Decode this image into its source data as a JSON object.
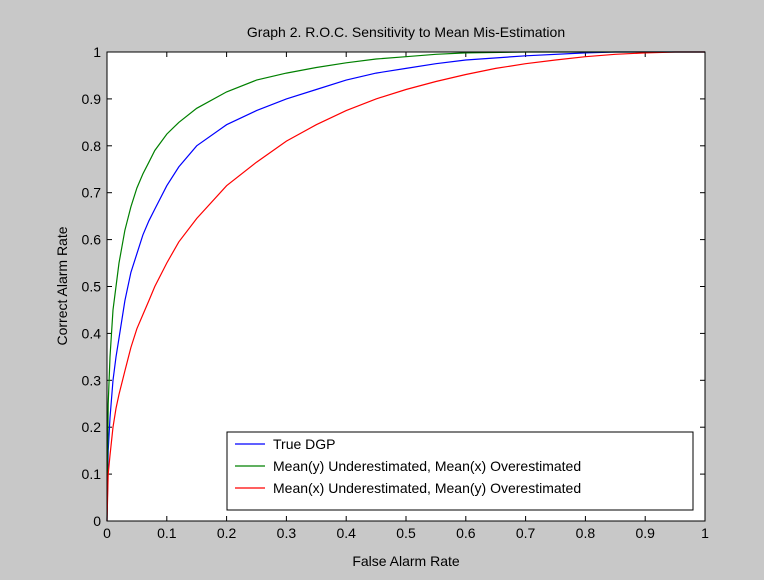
{
  "chart_data": {
    "type": "line",
    "title": "Graph 2. R.O.C. Sensitivity to Mean Mis-Estimation",
    "xlabel": "False Alarm Rate",
    "ylabel": "Correct Alarm Rate",
    "xlim": [
      0,
      1
    ],
    "ylim": [
      0,
      1
    ],
    "xticks": [
      0,
      0.1,
      0.2,
      0.3,
      0.4,
      0.5,
      0.6,
      0.7,
      0.8,
      0.9,
      1
    ],
    "xtick_labels": [
      "0",
      "0.1",
      "0.2",
      "0.3",
      "0.4",
      "0.5",
      "0.6",
      "0.7",
      "0.8",
      "0.9",
      "1"
    ],
    "yticks": [
      0,
      0.1,
      0.2,
      0.3,
      0.4,
      0.5,
      0.6,
      0.7,
      0.8,
      0.9,
      1
    ],
    "ytick_labels": [
      "0",
      "0.1",
      "0.2",
      "0.3",
      "0.4",
      "0.5",
      "0.6",
      "0.7",
      "0.8",
      "0.9",
      "1"
    ],
    "grid": false,
    "legend_position": "bottom-right",
    "series": [
      {
        "name": "True DGP",
        "color": "#0000ff",
        "x": [
          0,
          0.002,
          0.005,
          0.01,
          0.015,
          0.02,
          0.03,
          0.04,
          0.05,
          0.06,
          0.07,
          0.08,
          0.1,
          0.12,
          0.15,
          0.2,
          0.25,
          0.3,
          0.35,
          0.4,
          0.45,
          0.5,
          0.55,
          0.6,
          0.7,
          0.8,
          0.85,
          0.9,
          1
        ],
        "y": [
          0,
          0.15,
          0.22,
          0.3,
          0.35,
          0.39,
          0.47,
          0.53,
          0.57,
          0.61,
          0.64,
          0.665,
          0.715,
          0.755,
          0.8,
          0.845,
          0.875,
          0.9,
          0.92,
          0.94,
          0.955,
          0.965,
          0.975,
          0.983,
          0.992,
          0.998,
          1,
          1,
          1
        ]
      },
      {
        "name": "Mean(y) Underestimated, Mean(x) Overestimated",
        "color": "#008000",
        "x": [
          0,
          0.002,
          0.005,
          0.01,
          0.015,
          0.02,
          0.03,
          0.04,
          0.05,
          0.06,
          0.07,
          0.08,
          0.1,
          0.12,
          0.15,
          0.2,
          0.25,
          0.3,
          0.35,
          0.4,
          0.45,
          0.5,
          0.55,
          0.6,
          0.7,
          0.8,
          0.9,
          1
        ],
        "y": [
          0,
          0.25,
          0.35,
          0.45,
          0.5,
          0.55,
          0.62,
          0.67,
          0.71,
          0.74,
          0.765,
          0.79,
          0.825,
          0.85,
          0.88,
          0.915,
          0.94,
          0.955,
          0.967,
          0.977,
          0.985,
          0.99,
          0.995,
          0.998,
          1,
          1,
          1,
          1
        ]
      },
      {
        "name": "Mean(x) Underestimated, Mean(y) Overestimated",
        "color": "#ff0000",
        "x": [
          0,
          0.002,
          0.005,
          0.01,
          0.015,
          0.02,
          0.03,
          0.04,
          0.05,
          0.06,
          0.07,
          0.08,
          0.1,
          0.12,
          0.15,
          0.2,
          0.25,
          0.3,
          0.35,
          0.4,
          0.45,
          0.5,
          0.55,
          0.6,
          0.65,
          0.7,
          0.75,
          0.8,
          0.85,
          0.9,
          0.95,
          1
        ],
        "y": [
          0,
          0.1,
          0.14,
          0.2,
          0.24,
          0.27,
          0.32,
          0.37,
          0.41,
          0.44,
          0.47,
          0.5,
          0.55,
          0.595,
          0.645,
          0.715,
          0.765,
          0.81,
          0.845,
          0.875,
          0.9,
          0.92,
          0.937,
          0.952,
          0.965,
          0.975,
          0.983,
          0.99,
          0.995,
          0.998,
          1,
          1
        ]
      }
    ]
  }
}
